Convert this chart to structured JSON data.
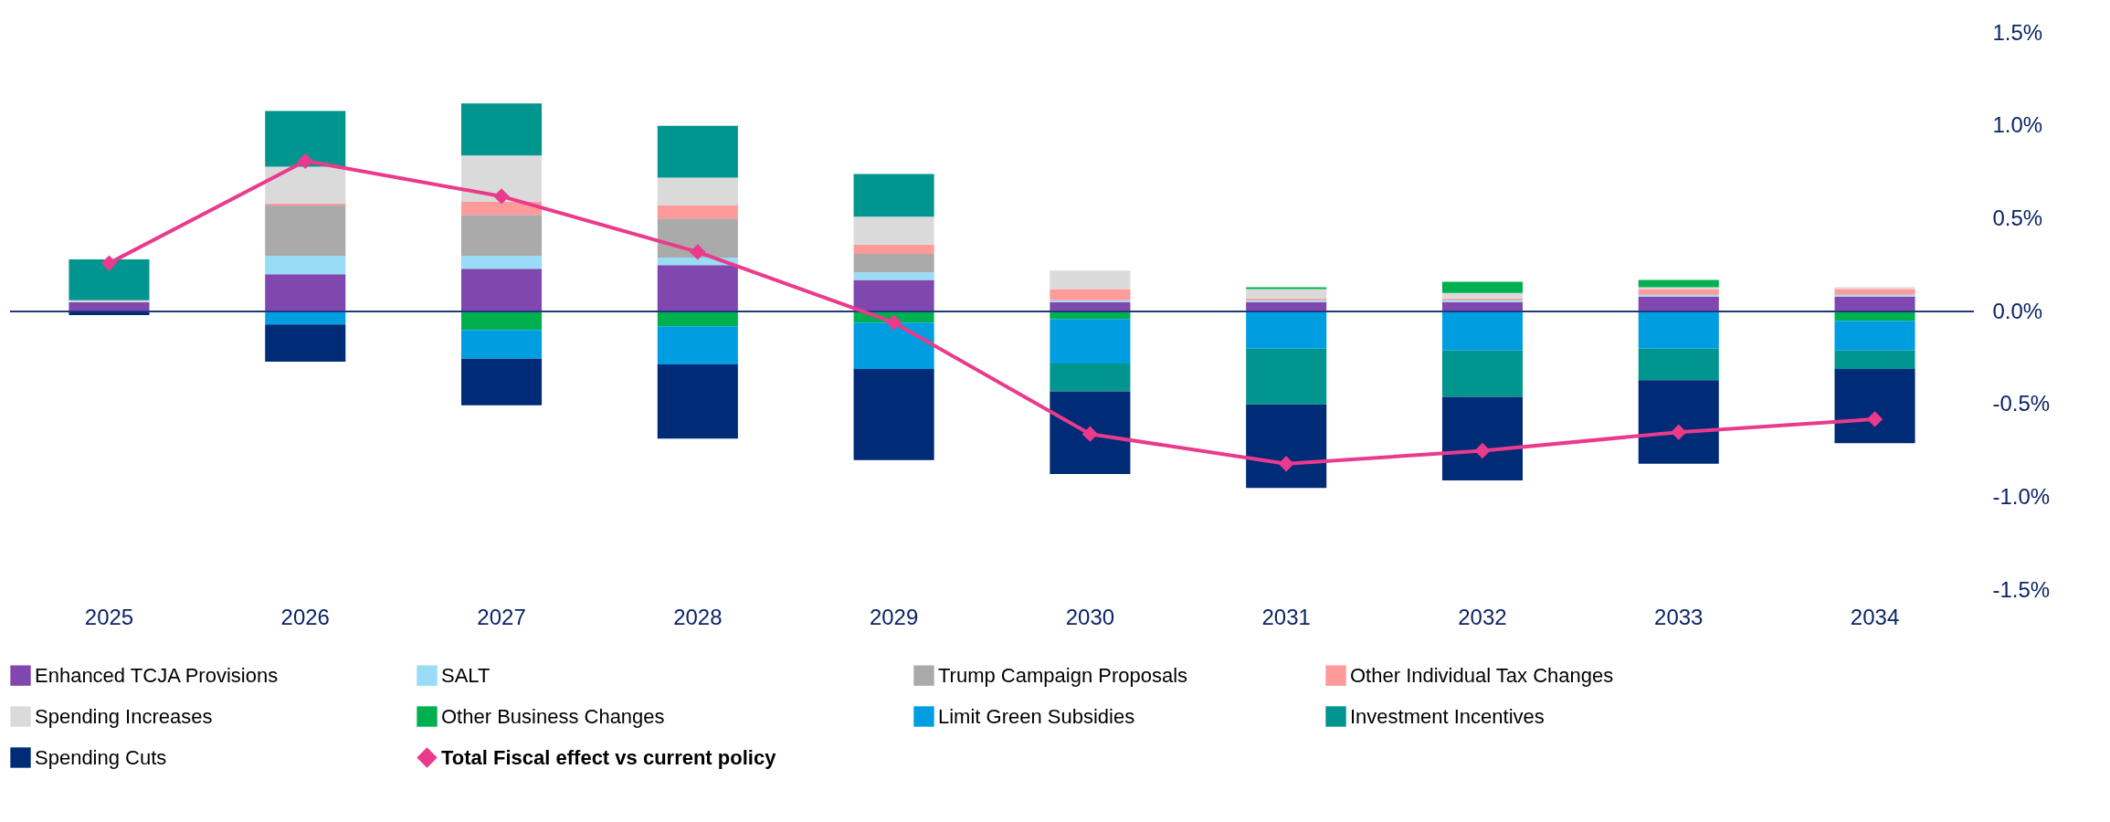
{
  "chart_data": {
    "type": "bar",
    "stacked": true,
    "categories": [
      "2025",
      "2026",
      "2027",
      "2028",
      "2029",
      "2030",
      "2031",
      "2032",
      "2033",
      "2034"
    ],
    "series": [
      {
        "name": "Enhanced TCJA Provisions",
        "color": "#8048ae",
        "values": [
          0.05,
          0.2,
          0.23,
          0.25,
          0.17,
          0.05,
          0.05,
          0.05,
          0.08,
          0.08
        ]
      },
      {
        "name": "SALT",
        "color": "#99dcf5",
        "values": [
          null,
          0.1,
          0.07,
          0.04,
          0.04,
          0.01,
          0.01,
          0.01,
          0.01,
          0.01
        ]
      },
      {
        "name": "Trump Campaign Proposals",
        "color": "#aaaaaa",
        "values": [
          null,
          0.27,
          0.22,
          0.21,
          0.1,
          null,
          null,
          null,
          null,
          null
        ]
      },
      {
        "name": "Other Individual Tax Changes",
        "color": "#fe9a99",
        "values": [
          null,
          0.01,
          0.07,
          0.07,
          0.05,
          0.06,
          0.01,
          0.01,
          0.03,
          0.03
        ]
      },
      {
        "name": "Spending Increases",
        "color": "#dadada",
        "values": [
          0.01,
          0.2,
          0.25,
          0.15,
          0.15,
          0.1,
          0.05,
          0.03,
          0.01,
          0.01
        ]
      },
      {
        "name": "Other Business Changes",
        "color": "#00b050",
        "values": [
          null,
          null,
          -0.1,
          -0.08,
          -0.06,
          -0.04,
          0.01,
          0.06,
          0.04,
          -0.05
        ]
      },
      {
        "name": "Limit Green Subsidies",
        "color": "#009ee0",
        "values": [
          null,
          -0.07,
          -0.155,
          -0.205,
          -0.25,
          -0.24,
          -0.2,
          -0.21,
          -0.2,
          -0.16
        ]
      },
      {
        "name": "Investment Incentives",
        "color": "#00968f",
        "values": [
          0.22,
          0.3,
          0.28,
          0.28,
          0.23,
          -0.15,
          -0.3,
          -0.25,
          -0.17,
          -0.1
        ]
      },
      {
        "name": "Spending Cuts",
        "color": "#002b77",
        "values": [
          -0.02,
          -0.2,
          -0.25,
          -0.4,
          -0.49,
          -0.445,
          -0.45,
          -0.45,
          -0.45,
          -0.4
        ]
      },
      {
        "name": "Total Fiscal effect vs current policy",
        "color": "#ea3a8c",
        "type": "line",
        "marker": "diamond",
        "values": [
          0.26,
          0.81,
          0.62,
          0.32,
          -0.06,
          -0.66,
          -0.82,
          -0.75,
          -0.65,
          -0.58
        ]
      }
    ],
    "ylim": [
      -1.5,
      1.5
    ],
    "yticks": [
      {
        "value": -1.5,
        "label": "-1.5%"
      },
      {
        "value": -1,
        "label": "-1.0%"
      },
      {
        "value": -0.5,
        "label": "-0.5%"
      },
      {
        "value": 0,
        "label": "0.0%"
      },
      {
        "value": 0.5,
        "label": "0.5%"
      },
      {
        "value": 1,
        "label": "1.0%"
      },
      {
        "value": 1.5,
        "label": "1.5%"
      }
    ],
    "ref_lines": [
      {
        "axis": "y",
        "value": 0,
        "color": "#1f3a7a"
      }
    ],
    "legend": "bottom"
  }
}
